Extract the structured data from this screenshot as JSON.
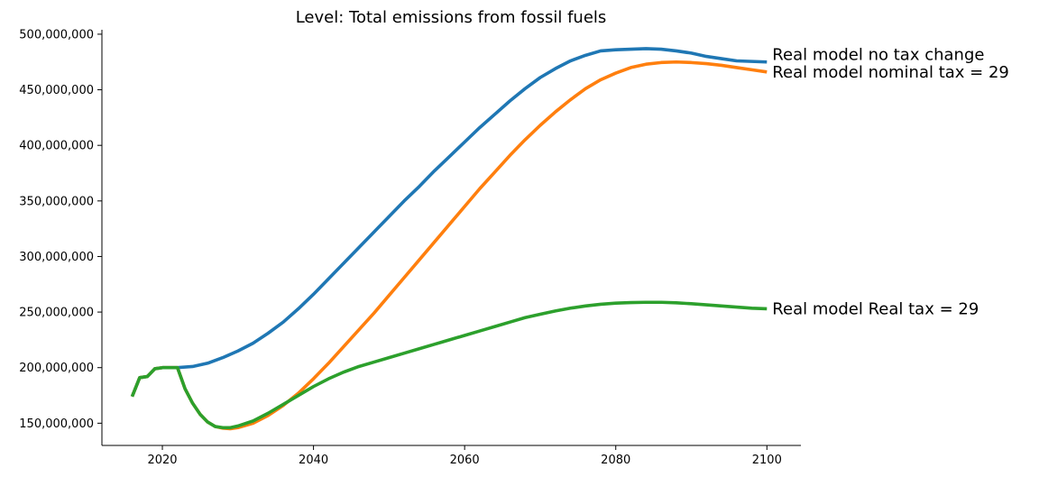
{
  "chart_data": {
    "type": "line",
    "title": "Level: Total emissions from fossil fuels",
    "xlabel": "",
    "ylabel": "",
    "xlim": [
      2012,
      2104.5
    ],
    "ylim": [
      130000000,
      504000000
    ],
    "xticks": [
      2020,
      2040,
      2060,
      2080,
      2100
    ],
    "yticks": [
      150000000,
      200000000,
      250000000,
      300000000,
      350000000,
      400000000,
      450000000,
      500000000
    ],
    "ytick_labels": [
      "150,000,000",
      "200,000,000",
      "250,000,000",
      "300,000,000",
      "350,000,000",
      "400,000,000",
      "450,000,000",
      "500,000,000"
    ],
    "xtick_labels": [
      "2020",
      "2040",
      "2060",
      "2080",
      "2100"
    ],
    "grid": false,
    "legend": "none",
    "series": [
      {
        "name": "Real model no tax change",
        "color": "#1f77b4",
        "points": [
          [
            2016,
            174000000
          ],
          [
            2017,
            191000000
          ],
          [
            2018,
            192000000
          ],
          [
            2019,
            199000000
          ],
          [
            2020,
            200000000
          ],
          [
            2022,
            200000000
          ],
          [
            2024,
            201000000
          ],
          [
            2026,
            204000000
          ],
          [
            2028,
            209000000
          ],
          [
            2030,
            215000000
          ],
          [
            2032,
            222000000
          ],
          [
            2034,
            231000000
          ],
          [
            2036,
            241000000
          ],
          [
            2038,
            253000000
          ],
          [
            2040,
            266000000
          ],
          [
            2042,
            280000000
          ],
          [
            2044,
            294000000
          ],
          [
            2046,
            308000000
          ],
          [
            2048,
            322000000
          ],
          [
            2050,
            336000000
          ],
          [
            2052,
            350000000
          ],
          [
            2054,
            363000000
          ],
          [
            2056,
            377000000
          ],
          [
            2058,
            390000000
          ],
          [
            2060,
            403000000
          ],
          [
            2062,
            416000000
          ],
          [
            2064,
            428000000
          ],
          [
            2066,
            440000000
          ],
          [
            2068,
            451000000
          ],
          [
            2070,
            461000000
          ],
          [
            2072,
            469000000
          ],
          [
            2074,
            476000000
          ],
          [
            2076,
            481000000
          ],
          [
            2078,
            485000000
          ],
          [
            2080,
            486000000
          ],
          [
            2082,
            486500000
          ],
          [
            2084,
            487000000
          ],
          [
            2086,
            486500000
          ],
          [
            2088,
            485000000
          ],
          [
            2090,
            483000000
          ],
          [
            2092,
            480000000
          ],
          [
            2094,
            478000000
          ],
          [
            2096,
            476000000
          ],
          [
            2098,
            475500000
          ],
          [
            2100,
            475000000
          ]
        ]
      },
      {
        "name": "Real model nominal tax = 29",
        "color": "#ff7f0e",
        "points": [
          [
            2016,
            174000000
          ],
          [
            2017,
            191000000
          ],
          [
            2018,
            192000000
          ],
          [
            2019,
            199000000
          ],
          [
            2020,
            200000000
          ],
          [
            2022,
            200000000
          ],
          [
            2023,
            181000000
          ],
          [
            2024,
            168000000
          ],
          [
            2025,
            158000000
          ],
          [
            2026,
            151000000
          ],
          [
            2027,
            147000000
          ],
          [
            2028,
            145500000
          ],
          [
            2029,
            145000000
          ],
          [
            2030,
            146000000
          ],
          [
            2032,
            150000000
          ],
          [
            2034,
            157000000
          ],
          [
            2036,
            166000000
          ],
          [
            2038,
            177000000
          ],
          [
            2040,
            190000000
          ],
          [
            2042,
            204000000
          ],
          [
            2044,
            219000000
          ],
          [
            2046,
            234000000
          ],
          [
            2048,
            249000000
          ],
          [
            2050,
            265000000
          ],
          [
            2052,
            281000000
          ],
          [
            2054,
            297000000
          ],
          [
            2056,
            313000000
          ],
          [
            2058,
            329000000
          ],
          [
            2060,
            345000000
          ],
          [
            2062,
            361000000
          ],
          [
            2064,
            376000000
          ],
          [
            2066,
            391000000
          ],
          [
            2068,
            405000000
          ],
          [
            2070,
            418000000
          ],
          [
            2072,
            430000000
          ],
          [
            2074,
            441000000
          ],
          [
            2076,
            451000000
          ],
          [
            2078,
            459000000
          ],
          [
            2080,
            465000000
          ],
          [
            2082,
            470000000
          ],
          [
            2084,
            473000000
          ],
          [
            2086,
            474500000
          ],
          [
            2088,
            475000000
          ],
          [
            2090,
            474500000
          ],
          [
            2092,
            473500000
          ],
          [
            2094,
            472000000
          ],
          [
            2096,
            470000000
          ],
          [
            2098,
            468000000
          ],
          [
            2100,
            466000000
          ]
        ]
      },
      {
        "name": "Real model Real tax = 29",
        "color": "#2ca02c",
        "points": [
          [
            2016,
            174000000
          ],
          [
            2017,
            191000000
          ],
          [
            2018,
            192000000
          ],
          [
            2019,
            199000000
          ],
          [
            2020,
            200000000
          ],
          [
            2022,
            200000000
          ],
          [
            2023,
            181000000
          ],
          [
            2024,
            168000000
          ],
          [
            2025,
            158000000
          ],
          [
            2026,
            151000000
          ],
          [
            2027,
            147000000
          ],
          [
            2028,
            146000000
          ],
          [
            2029,
            146000000
          ],
          [
            2030,
            147500000
          ],
          [
            2032,
            152000000
          ],
          [
            2034,
            159000000
          ],
          [
            2036,
            167000000
          ],
          [
            2038,
            175000000
          ],
          [
            2040,
            183000000
          ],
          [
            2042,
            190000000
          ],
          [
            2044,
            196000000
          ],
          [
            2046,
            201000000
          ],
          [
            2048,
            205000000
          ],
          [
            2050,
            209000000
          ],
          [
            2052,
            213000000
          ],
          [
            2054,
            217000000
          ],
          [
            2056,
            221000000
          ],
          [
            2058,
            225000000
          ],
          [
            2060,
            229000000
          ],
          [
            2062,
            233000000
          ],
          [
            2064,
            237000000
          ],
          [
            2066,
            241000000
          ],
          [
            2068,
            245000000
          ],
          [
            2070,
            248000000
          ],
          [
            2072,
            251000000
          ],
          [
            2074,
            253500000
          ],
          [
            2076,
            255500000
          ],
          [
            2078,
            257000000
          ],
          [
            2080,
            258000000
          ],
          [
            2082,
            258500000
          ],
          [
            2084,
            258800000
          ],
          [
            2086,
            258800000
          ],
          [
            2088,
            258300000
          ],
          [
            2090,
            257500000
          ],
          [
            2092,
            256500000
          ],
          [
            2094,
            255500000
          ],
          [
            2096,
            254500000
          ],
          [
            2098,
            253500000
          ],
          [
            2100,
            253000000
          ]
        ]
      }
    ]
  }
}
